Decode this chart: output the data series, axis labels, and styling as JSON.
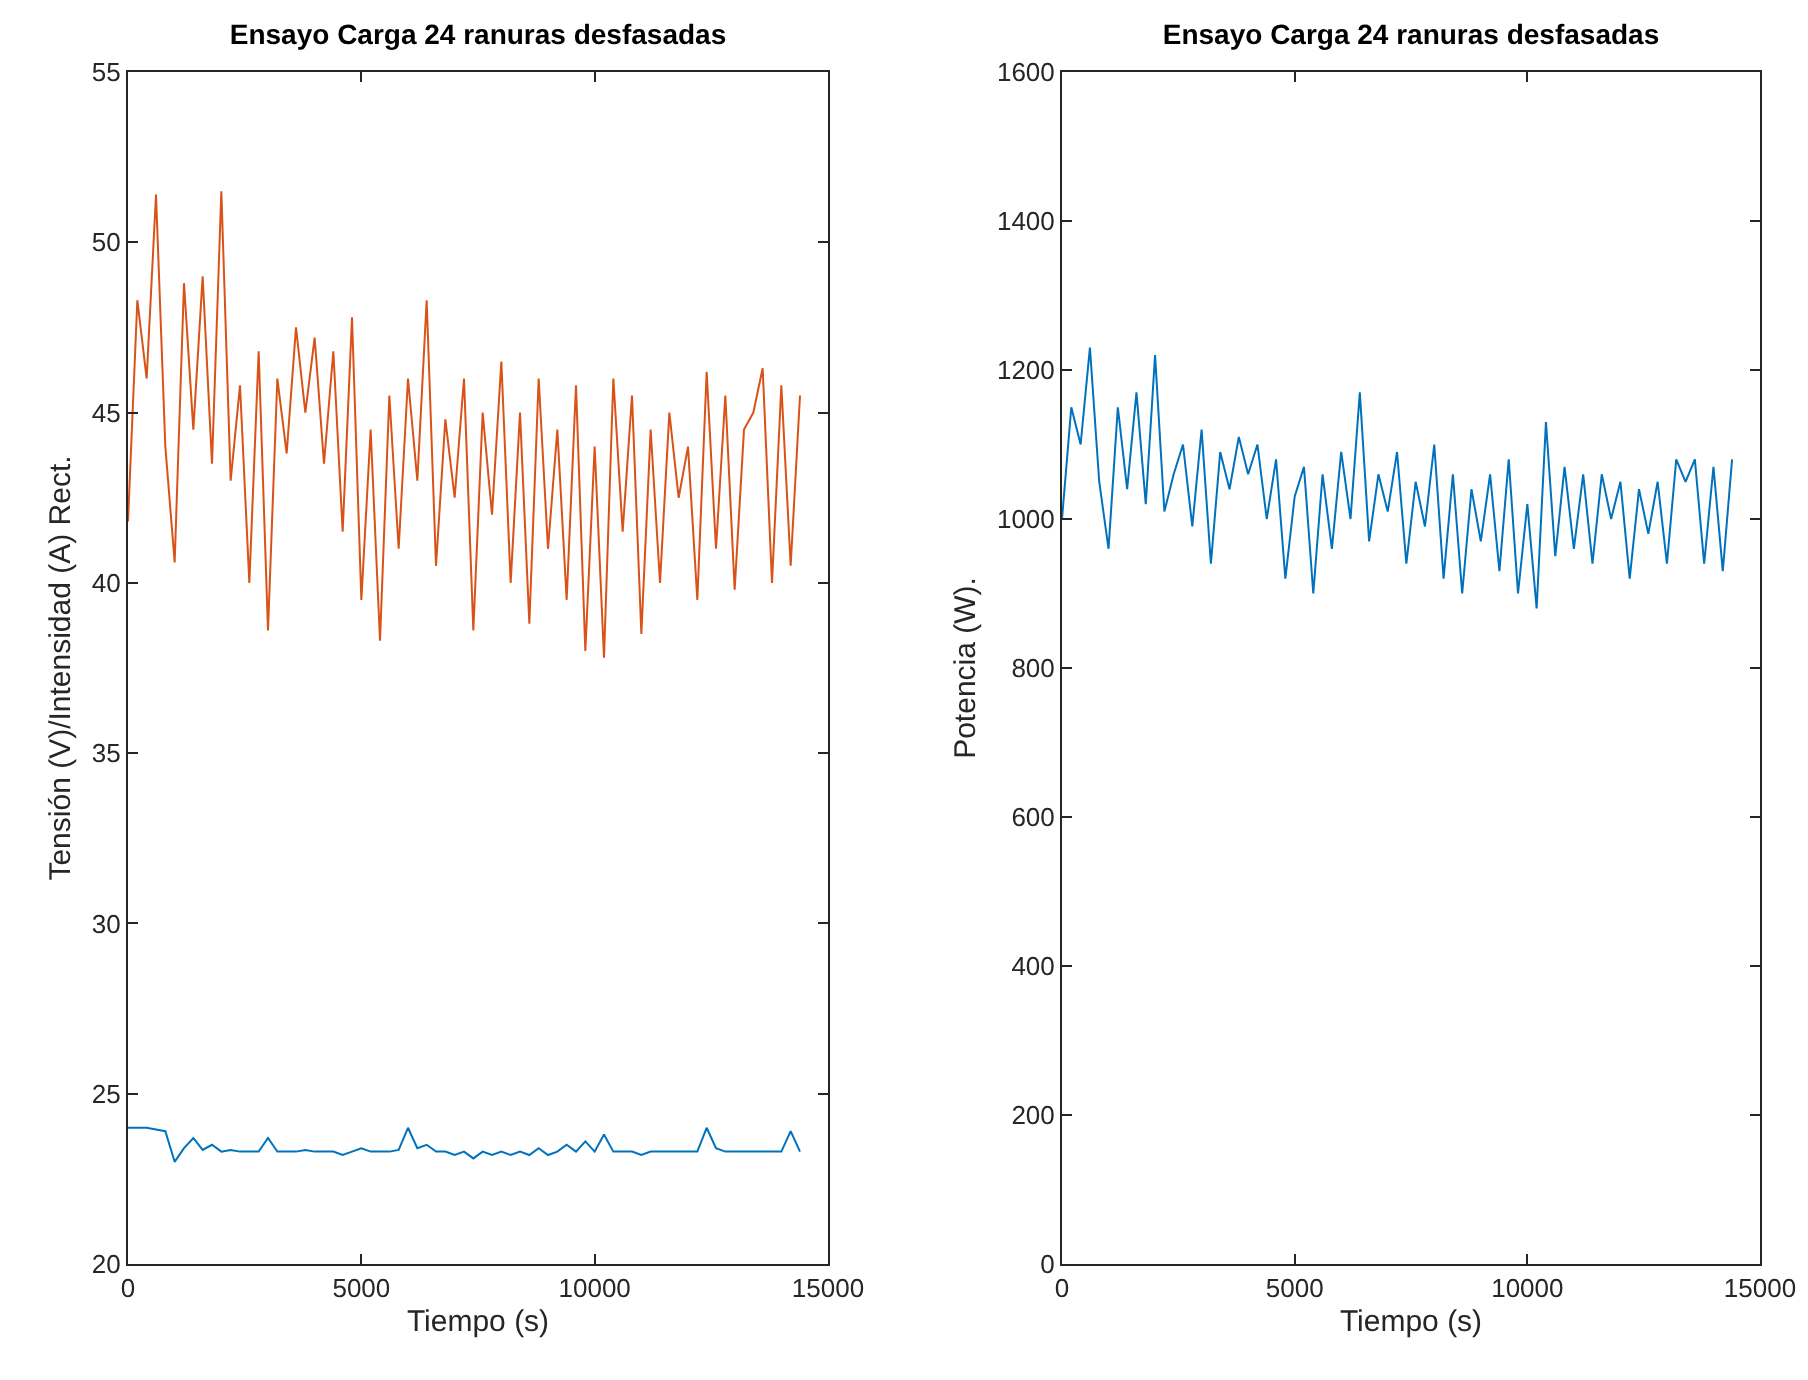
{
  "chart_data": [
    {
      "type": "line",
      "title": "Ensayo Carga 24 ranuras desfasadas",
      "xlabel": "Tiempo (s)",
      "ylabel": "Tensión (V)/Intensidad (A) Rect.",
      "xlim": [
        0,
        15000
      ],
      "xticks": [
        0,
        5000,
        10000,
        15000
      ],
      "ylim": [
        20,
        55
      ],
      "yticks": [
        20,
        25,
        30,
        35,
        40,
        45,
        50,
        55
      ],
      "x": [
        0,
        200,
        400,
        600,
        800,
        1000,
        1200,
        1400,
        1600,
        1800,
        2000,
        2200,
        2400,
        2600,
        2800,
        3000,
        3200,
        3400,
        3600,
        3800,
        4000,
        4200,
        4400,
        4600,
        4800,
        5000,
        5200,
        5400,
        5600,
        5800,
        6000,
        6200,
        6400,
        6600,
        6800,
        7000,
        7200,
        7400,
        7600,
        7800,
        8000,
        8200,
        8400,
        8600,
        8800,
        9000,
        9200,
        9400,
        9600,
        9800,
        10000,
        10200,
        10400,
        10600,
        10800,
        11000,
        11200,
        11400,
        11600,
        11800,
        12000,
        12200,
        12400,
        12600,
        12800,
        13000,
        13200,
        13400,
        13600,
        13800,
        14000,
        14200,
        14400
      ],
      "series": [
        {
          "color": "#0072bd",
          "values": [
            24.0,
            24.0,
            24.0,
            23.95,
            23.9,
            23.0,
            23.4,
            23.7,
            23.35,
            23.5,
            23.3,
            23.35,
            23.3,
            23.3,
            23.3,
            23.7,
            23.3,
            23.3,
            23.3,
            23.35,
            23.3,
            23.3,
            23.3,
            23.2,
            23.3,
            23.4,
            23.3,
            23.3,
            23.3,
            23.35,
            24.0,
            23.4,
            23.5,
            23.3,
            23.3,
            23.2,
            23.3,
            23.1,
            23.3,
            23.2,
            23.3,
            23.2,
            23.3,
            23.2,
            23.4,
            23.2,
            23.3,
            23.5,
            23.3,
            23.6,
            23.3,
            23.8,
            23.3,
            23.3,
            23.3,
            23.2,
            23.3,
            23.3,
            23.3,
            23.3,
            23.3,
            23.3,
            24.0,
            23.4,
            23.3,
            23.3,
            23.3,
            23.3,
            23.3,
            23.3,
            23.3,
            23.9,
            23.3
          ]
        },
        {
          "color": "#d95319",
          "values": [
            41.8,
            48.3,
            46.0,
            51.4,
            44.0,
            40.6,
            48.8,
            44.5,
            49.0,
            43.5,
            51.5,
            43.0,
            45.8,
            40.0,
            46.8,
            38.6,
            46.0,
            43.8,
            47.5,
            45.0,
            47.2,
            43.5,
            46.8,
            41.5,
            47.8,
            39.5,
            44.5,
            38.3,
            45.5,
            41.0,
            46.0,
            43.0,
            48.3,
            40.5,
            44.8,
            42.5,
            46.0,
            38.6,
            45.0,
            42.0,
            46.5,
            40.0,
            45.0,
            38.8,
            46.0,
            41.0,
            44.5,
            39.5,
            45.8,
            38.0,
            44.0,
            37.8,
            46.0,
            41.5,
            45.5,
            38.5,
            44.5,
            40.0,
            45.0,
            42.5,
            44.0,
            39.5,
            46.2,
            41.0,
            45.5,
            39.8,
            44.5,
            45.0,
            46.3,
            40.0,
            45.8,
            40.5,
            45.5
          ]
        }
      ]
    },
    {
      "type": "line",
      "title": "Ensayo Carga 24 ranuras desfasadas",
      "xlabel": "Tiempo (s)",
      "ylabel": "Potencia (W).",
      "xlim": [
        0,
        15000
      ],
      "xticks": [
        0,
        5000,
        10000,
        15000
      ],
      "ylim": [
        0,
        1600
      ],
      "yticks": [
        0,
        200,
        400,
        600,
        800,
        1000,
        1200,
        1400,
        1600
      ],
      "x": [
        0,
        200,
        400,
        600,
        800,
        1000,
        1200,
        1400,
        1600,
        1800,
        2000,
        2200,
        2400,
        2600,
        2800,
        3000,
        3200,
        3400,
        3600,
        3800,
        4000,
        4200,
        4400,
        4600,
        4800,
        5000,
        5200,
        5400,
        5600,
        5800,
        6000,
        6200,
        6400,
        6600,
        6800,
        7000,
        7200,
        7400,
        7600,
        7800,
        8000,
        8200,
        8400,
        8600,
        8800,
        9000,
        9200,
        9400,
        9600,
        9800,
        10000,
        10200,
        10400,
        10600,
        10800,
        11000,
        11200,
        11400,
        11600,
        11800,
        12000,
        12200,
        12400,
        12600,
        12800,
        13000,
        13200,
        13400,
        13600,
        13800,
        14000,
        14200,
        14400
      ],
      "series": [
        {
          "color": "#0072bd",
          "values": [
            1000,
            1150,
            1100,
            1230,
            1050,
            960,
            1150,
            1040,
            1170,
            1020,
            1220,
            1010,
            1060,
            1100,
            990,
            1120,
            940,
            1090,
            1040,
            1110,
            1060,
            1100,
            1000,
            1080,
            920,
            1030,
            1070,
            900,
            1060,
            960,
            1090,
            1000,
            1170,
            970,
            1060,
            1010,
            1090,
            940,
            1050,
            990,
            1100,
            920,
            1060,
            900,
            1040,
            970,
            1060,
            930,
            1080,
            900,
            1020,
            880,
            1130,
            950,
            1070,
            960,
            1060,
            940,
            1060,
            1000,
            1050,
            920,
            1040,
            980,
            1050,
            940,
            1080,
            1050,
            1080,
            940,
            1070,
            930,
            1080
          ]
        }
      ]
    }
  ]
}
